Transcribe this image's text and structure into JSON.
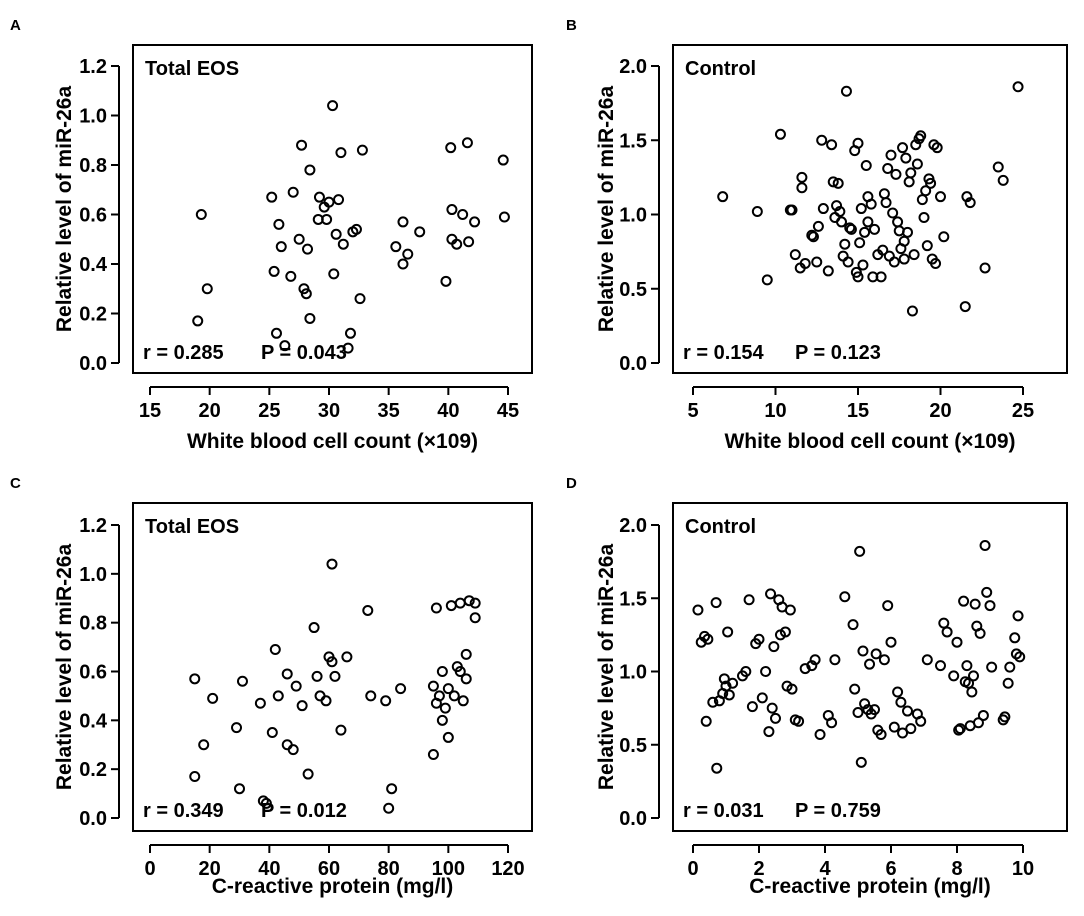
{
  "chart_data": [
    {
      "panel": "A",
      "type": "scatter",
      "group_label": "Total EOS",
      "stats": {
        "r": "r = 0.285",
        "p": "P = 0.043"
      },
      "xlabel": "White blood cell count (×109)",
      "ylabel": "Relative level of miR-26a",
      "xlim": [
        15,
        45
      ],
      "ylim": [
        0,
        1.2
      ],
      "xticks": [
        15,
        20,
        25,
        30,
        35,
        40,
        45
      ],
      "xtick_labels": [
        "15",
        "20",
        "25",
        "30",
        "35",
        "40",
        "45"
      ],
      "yticks": [
        0,
        0.2,
        0.4,
        0.6,
        0.8,
        1.0,
        1.2
      ],
      "ytick_labels": [
        "0.0",
        "0.2",
        "0.4",
        "0.6",
        "0.8",
        "1.0",
        "1.2"
      ],
      "points": [
        [
          19.0,
          0.17
        ],
        [
          19.3,
          0.6
        ],
        [
          19.8,
          0.3
        ],
        [
          25.2,
          0.67
        ],
        [
          25.4,
          0.37
        ],
        [
          25.6,
          0.12
        ],
        [
          25.8,
          0.56
        ],
        [
          26.0,
          0.47
        ],
        [
          26.3,
          0.07
        ],
        [
          26.8,
          0.35
        ],
        [
          27.0,
          0.69
        ],
        [
          27.5,
          0.5
        ],
        [
          27.7,
          0.88
        ],
        [
          27.9,
          0.3
        ],
        [
          28.1,
          0.28
        ],
        [
          28.2,
          0.46
        ],
        [
          28.4,
          0.78
        ],
        [
          28.4,
          0.18
        ],
        [
          29.1,
          0.58
        ],
        [
          29.2,
          0.67
        ],
        [
          29.6,
          0.63
        ],
        [
          29.8,
          0.58
        ],
        [
          30.0,
          0.65
        ],
        [
          30.3,
          1.04
        ],
        [
          30.4,
          0.36
        ],
        [
          30.6,
          0.52
        ],
        [
          30.8,
          0.66
        ],
        [
          31.0,
          0.85
        ],
        [
          31.2,
          0.48
        ],
        [
          31.6,
          0.06
        ],
        [
          31.8,
          0.12
        ],
        [
          32.0,
          0.53
        ],
        [
          32.3,
          0.54
        ],
        [
          32.6,
          0.26
        ],
        [
          32.8,
          0.86
        ],
        [
          35.6,
          0.47
        ],
        [
          36.2,
          0.57
        ],
        [
          36.2,
          0.4
        ],
        [
          36.6,
          0.44
        ],
        [
          37.6,
          0.53
        ],
        [
          39.8,
          0.33
        ],
        [
          40.2,
          0.87
        ],
        [
          40.3,
          0.62
        ],
        [
          40.3,
          0.5
        ],
        [
          40.7,
          0.48
        ],
        [
          41.2,
          0.6
        ],
        [
          41.6,
          0.89
        ],
        [
          41.7,
          0.49
        ],
        [
          42.2,
          0.57
        ],
        [
          44.6,
          0.82
        ],
        [
          44.7,
          0.59
        ]
      ]
    },
    {
      "panel": "B",
      "type": "scatter",
      "group_label": "Control",
      "stats": {
        "r": "r = 0.154",
        "p": "P = 0.123"
      },
      "xlabel": "White blood cell count (×109)",
      "ylabel": "Relative level of miR-26a",
      "xlim": [
        5,
        25
      ],
      "ylim": [
        0,
        2.0
      ],
      "xticks": [
        5,
        10,
        15,
        20,
        25
      ],
      "xtick_labels": [
        "5",
        "10",
        "15",
        "20",
        "25"
      ],
      "yticks": [
        0,
        0.5,
        1.0,
        1.5,
        2.0
      ],
      "ytick_labels": [
        "0.0",
        "0.5",
        "1.0",
        "1.5",
        "2.0"
      ],
      "points": [
        [
          6.8,
          1.12
        ],
        [
          8.9,
          1.02
        ],
        [
          9.5,
          0.56
        ],
        [
          10.3,
          1.54
        ],
        [
          10.9,
          1.03
        ],
        [
          11.0,
          1.03
        ],
        [
          11.2,
          0.73
        ],
        [
          11.5,
          0.64
        ],
        [
          11.6,
          1.25
        ],
        [
          11.6,
          1.18
        ],
        [
          11.8,
          0.67
        ],
        [
          12.2,
          0.86
        ],
        [
          12.3,
          0.85
        ],
        [
          12.5,
          0.68
        ],
        [
          12.6,
          0.92
        ],
        [
          12.8,
          1.5
        ],
        [
          12.9,
          1.04
        ],
        [
          13.2,
          0.62
        ],
        [
          13.4,
          1.47
        ],
        [
          13.5,
          1.22
        ],
        [
          13.6,
          0.98
        ],
        [
          13.7,
          1.06
        ],
        [
          13.8,
          1.21
        ],
        [
          13.9,
          1.02
        ],
        [
          14.0,
          0.95
        ],
        [
          14.1,
          0.72
        ],
        [
          14.2,
          0.8
        ],
        [
          14.3,
          1.83
        ],
        [
          14.4,
          0.68
        ],
        [
          14.5,
          0.91
        ],
        [
          14.6,
          0.9
        ],
        [
          14.8,
          1.43
        ],
        [
          14.9,
          0.61
        ],
        [
          15.0,
          0.58
        ],
        [
          15.0,
          1.48
        ],
        [
          15.1,
          0.81
        ],
        [
          15.2,
          1.04
        ],
        [
          15.3,
          0.66
        ],
        [
          15.4,
          0.88
        ],
        [
          15.5,
          1.33
        ],
        [
          15.6,
          1.12
        ],
        [
          15.6,
          0.95
        ],
        [
          15.8,
          1.07
        ],
        [
          15.9,
          0.58
        ],
        [
          16.0,
          0.9
        ],
        [
          16.2,
          0.73
        ],
        [
          16.4,
          0.58
        ],
        [
          16.5,
          0.76
        ],
        [
          16.6,
          1.14
        ],
        [
          16.7,
          1.08
        ],
        [
          16.8,
          1.31
        ],
        [
          16.9,
          0.72
        ],
        [
          17.0,
          1.4
        ],
        [
          17.1,
          1.01
        ],
        [
          17.2,
          0.68
        ],
        [
          17.3,
          1.27
        ],
        [
          17.4,
          0.95
        ],
        [
          17.5,
          0.89
        ],
        [
          17.6,
          0.77
        ],
        [
          17.7,
          1.45
        ],
        [
          17.8,
          0.82
        ],
        [
          17.8,
          0.7
        ],
        [
          17.9,
          1.38
        ],
        [
          18.0,
          0.88
        ],
        [
          18.1,
          1.22
        ],
        [
          18.2,
          1.28
        ],
        [
          18.3,
          0.35
        ],
        [
          18.4,
          0.73
        ],
        [
          18.5,
          1.47
        ],
        [
          18.6,
          1.34
        ],
        [
          18.7,
          1.51
        ],
        [
          18.8,
          1.53
        ],
        [
          18.9,
          1.1
        ],
        [
          19.0,
          0.98
        ],
        [
          19.1,
          1.16
        ],
        [
          19.2,
          0.79
        ],
        [
          19.3,
          1.24
        ],
        [
          19.4,
          1.21
        ],
        [
          19.5,
          0.7
        ],
        [
          19.6,
          1.47
        ],
        [
          19.7,
          0.67
        ],
        [
          19.8,
          1.45
        ],
        [
          20.0,
          1.12
        ],
        [
          20.2,
          0.85
        ],
        [
          21.5,
          0.38
        ],
        [
          21.6,
          1.12
        ],
        [
          21.8,
          1.08
        ],
        [
          22.7,
          0.64
        ],
        [
          23.5,
          1.32
        ],
        [
          23.8,
          1.23
        ],
        [
          24.7,
          1.86
        ]
      ]
    },
    {
      "panel": "C",
      "type": "scatter",
      "group_label": "Total EOS",
      "stats": {
        "r": "r = 0.349",
        "p": "P = 0.012"
      },
      "xlabel": "C-reactive protein (mg/l)",
      "ylabel": "Relative level of miR-26a",
      "xlim": [
        0,
        120
      ],
      "ylim": [
        0,
        1.2
      ],
      "xticks": [
        0,
        20,
        40,
        60,
        80,
        100,
        120
      ],
      "xtick_labels": [
        "0",
        "20",
        "40",
        "60",
        "80",
        "100",
        "120"
      ],
      "yticks": [
        0,
        0.2,
        0.4,
        0.6,
        0.8,
        1.0,
        1.2
      ],
      "ytick_labels": [
        "0.0",
        "0.2",
        "0.4",
        "0.6",
        "0.8",
        "1.0",
        "1.2"
      ],
      "points": [
        [
          15,
          0.57
        ],
        [
          15,
          0.17
        ],
        [
          18,
          0.3
        ],
        [
          21,
          0.49
        ],
        [
          29,
          0.37
        ],
        [
          30,
          0.12
        ],
        [
          31,
          0.56
        ],
        [
          37,
          0.47
        ],
        [
          38,
          0.07
        ],
        [
          39,
          0.06
        ],
        [
          41,
          0.35
        ],
        [
          42,
          0.69
        ],
        [
          43,
          0.5
        ],
        [
          46,
          0.59
        ],
        [
          46,
          0.3
        ],
        [
          48,
          0.28
        ],
        [
          49,
          0.54
        ],
        [
          51,
          0.46
        ],
        [
          53,
          0.18
        ],
        [
          55,
          0.78
        ],
        [
          56,
          0.58
        ],
        [
          57,
          0.5
        ],
        [
          59,
          0.48
        ],
        [
          60,
          0.66
        ],
        [
          61,
          0.64
        ],
        [
          61,
          1.04
        ],
        [
          62,
          0.58
        ],
        [
          64,
          0.36
        ],
        [
          66,
          0.66
        ],
        [
          73,
          0.85
        ],
        [
          74,
          0.5
        ],
        [
          79,
          0.48
        ],
        [
          80,
          0.04
        ],
        [
          81,
          0.12
        ],
        [
          84,
          0.53
        ],
        [
          95,
          0.54
        ],
        [
          95,
          0.26
        ],
        [
          96,
          0.86
        ],
        [
          96,
          0.47
        ],
        [
          97,
          0.5
        ],
        [
          98,
          0.4
        ],
        [
          98,
          0.6
        ],
        [
          99,
          0.45
        ],
        [
          100,
          0.33
        ],
        [
          100,
          0.53
        ],
        [
          101,
          0.87
        ],
        [
          102,
          0.5
        ],
        [
          103,
          0.62
        ],
        [
          104,
          0.6
        ],
        [
          105,
          0.48
        ],
        [
          106,
          0.67
        ],
        [
          106,
          0.57
        ],
        [
          107,
          0.89
        ],
        [
          109,
          0.88
        ],
        [
          109,
          0.82
        ],
        [
          104,
          0.88
        ]
      ]
    },
    {
      "panel": "D",
      "type": "scatter",
      "group_label": "Control",
      "stats": {
        "r": "r = 0.031",
        "p": "P = 0.759"
      },
      "xlabel": "C-reactive protein (mg/l)",
      "ylabel": "Relative level of miR-26a",
      "xlim": [
        0,
        10
      ],
      "ylim": [
        0,
        2.0
      ],
      "xticks": [
        0,
        2,
        4,
        6,
        8,
        10
      ],
      "xtick_labels": [
        "0",
        "2",
        "4",
        "6",
        "8",
        "10"
      ],
      "yticks": [
        0,
        0.5,
        1.0,
        1.5,
        2.0
      ],
      "ytick_labels": [
        "0.0",
        "0.5",
        "1.0",
        "1.5",
        "2.0"
      ],
      "points": [
        [
          0.15,
          1.42
        ],
        [
          0.25,
          1.2
        ],
        [
          0.35,
          1.24
        ],
        [
          0.4,
          0.66
        ],
        [
          0.45,
          1.22
        ],
        [
          0.6,
          0.79
        ],
        [
          0.7,
          1.47
        ],
        [
          0.72,
          0.34
        ],
        [
          0.8,
          0.8
        ],
        [
          0.9,
          0.85
        ],
        [
          0.95,
          0.95
        ],
        [
          1.0,
          0.9
        ],
        [
          1.05,
          1.27
        ],
        [
          1.1,
          0.84
        ],
        [
          1.2,
          0.92
        ],
        [
          1.5,
          0.97
        ],
        [
          1.6,
          1.0
        ],
        [
          1.7,
          1.49
        ],
        [
          1.8,
          0.76
        ],
        [
          1.9,
          1.19
        ],
        [
          2.0,
          1.22
        ],
        [
          2.1,
          0.82
        ],
        [
          2.2,
          1.0
        ],
        [
          2.3,
          0.59
        ],
        [
          2.35,
          1.53
        ],
        [
          2.4,
          0.75
        ],
        [
          2.45,
          1.17
        ],
        [
          2.5,
          0.68
        ],
        [
          2.6,
          1.49
        ],
        [
          2.65,
          1.25
        ],
        [
          2.7,
          1.44
        ],
        [
          2.8,
          1.27
        ],
        [
          2.85,
          0.9
        ],
        [
          2.95,
          1.42
        ],
        [
          3.0,
          0.88
        ],
        [
          3.1,
          0.67
        ],
        [
          3.2,
          0.66
        ],
        [
          3.4,
          1.02
        ],
        [
          3.6,
          1.04
        ],
        [
          3.7,
          1.08
        ],
        [
          3.85,
          0.57
        ],
        [
          4.1,
          0.7
        ],
        [
          4.2,
          0.65
        ],
        [
          4.3,
          1.08
        ],
        [
          4.6,
          1.51
        ],
        [
          4.85,
          1.32
        ],
        [
          4.9,
          0.88
        ],
        [
          5.0,
          0.72
        ],
        [
          5.05,
          1.82
        ],
        [
          5.1,
          0.38
        ],
        [
          5.15,
          1.14
        ],
        [
          5.2,
          0.78
        ],
        [
          5.3,
          0.74
        ],
        [
          5.35,
          1.05
        ],
        [
          5.4,
          0.71
        ],
        [
          5.5,
          0.74
        ],
        [
          5.55,
          1.12
        ],
        [
          5.6,
          0.6
        ],
        [
          5.7,
          0.57
        ],
        [
          5.8,
          1.08
        ],
        [
          5.9,
          1.45
        ],
        [
          6.0,
          1.2
        ],
        [
          6.1,
          0.62
        ],
        [
          6.2,
          0.86
        ],
        [
          6.3,
          0.79
        ],
        [
          6.35,
          0.58
        ],
        [
          6.5,
          0.73
        ],
        [
          6.6,
          0.61
        ],
        [
          6.8,
          0.71
        ],
        [
          6.9,
          0.66
        ],
        [
          7.1,
          1.08
        ],
        [
          7.5,
          1.04
        ],
        [
          7.6,
          1.33
        ],
        [
          7.7,
          1.27
        ],
        [
          7.9,
          0.97
        ],
        [
          8.0,
          1.2
        ],
        [
          8.05,
          0.6
        ],
        [
          8.1,
          0.61
        ],
        [
          8.2,
          1.48
        ],
        [
          8.25,
          0.93
        ],
        [
          8.3,
          1.04
        ],
        [
          8.35,
          0.92
        ],
        [
          8.4,
          0.63
        ],
        [
          8.45,
          0.86
        ],
        [
          8.5,
          0.97
        ],
        [
          8.55,
          1.46
        ],
        [
          8.6,
          1.31
        ],
        [
          8.65,
          0.65
        ],
        [
          8.7,
          1.26
        ],
        [
          8.8,
          0.7
        ],
        [
          8.85,
          1.86
        ],
        [
          8.9,
          1.54
        ],
        [
          9.0,
          1.45
        ],
        [
          9.05,
          1.03
        ],
        [
          9.4,
          0.67
        ],
        [
          9.45,
          0.69
        ],
        [
          9.55,
          0.92
        ],
        [
          9.6,
          1.03
        ],
        [
          9.75,
          1.23
        ],
        [
          9.8,
          1.12
        ],
        [
          9.85,
          1.38
        ],
        [
          9.9,
          1.1
        ]
      ]
    }
  ]
}
